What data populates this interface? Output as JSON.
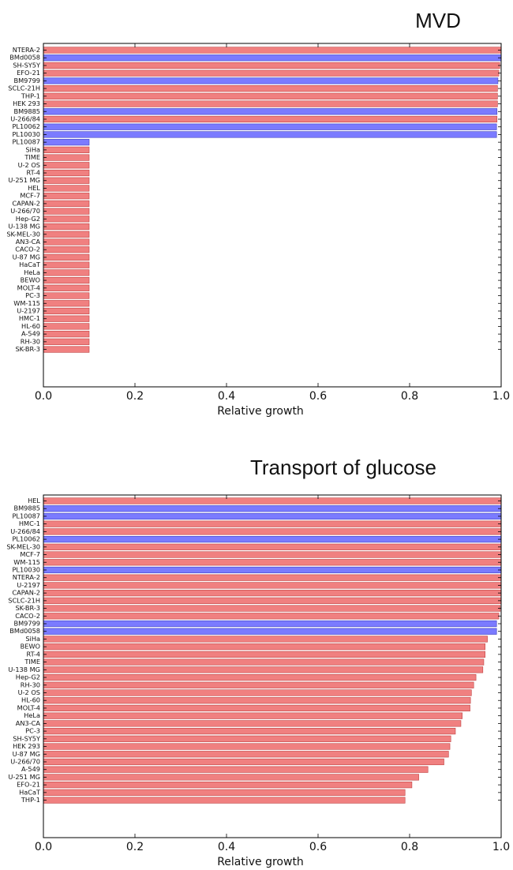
{
  "colors": {
    "red": "#f08080",
    "blue": "#7b7bff",
    "edge": "#c04040",
    "edge_blue": "#4040c0"
  },
  "chart_data": [
    {
      "type": "bar",
      "orientation": "horizontal",
      "title": "MVD",
      "xlabel": "Relative growth",
      "xlim": [
        0,
        1.0
      ],
      "xticks": [
        "0.0",
        "0.2",
        "0.4",
        "0.6",
        "0.8",
        "1.0"
      ],
      "categories": [
        "NTERA-2",
        "BMd0058",
        "SH-SY5Y",
        "EFO-21",
        "BM9799",
        "SCLC-21H",
        "THP-1",
        "HEK 293",
        "BM9885",
        "U-266/84",
        "PL10062",
        "PL10030",
        "PL10087",
        "SiHa",
        "TIME",
        "U-2 OS",
        "RT-4",
        "U-251 MG",
        "HEL",
        "MCF-7",
        "CAPAN-2",
        "U-266/70",
        "Hep-G2",
        "U-138 MG",
        "SK-MEL-30",
        "AN3-CA",
        "CACO-2",
        "U-87 MG",
        "HaCaT",
        "HeLa",
        "BEWO",
        "MOLT-4",
        "PC-3",
        "WM-115",
        "U-2197",
        "HMC-1",
        "HL-60",
        "A-549",
        "RH-30",
        "SK-BR-3"
      ],
      "values": [
        1.0,
        1.0,
        0.997,
        0.995,
        0.993,
        0.992,
        0.992,
        0.992,
        0.991,
        0.991,
        0.99,
        0.99,
        0.1,
        0.1,
        0.1,
        0.1,
        0.1,
        0.1,
        0.1,
        0.1,
        0.1,
        0.1,
        0.1,
        0.1,
        0.1,
        0.1,
        0.1,
        0.1,
        0.1,
        0.1,
        0.1,
        0.1,
        0.1,
        0.1,
        0.1,
        0.1,
        0.1,
        0.1,
        0.1,
        0.1
      ],
      "colors": [
        "red",
        "blue",
        "red",
        "red",
        "blue",
        "red",
        "red",
        "red",
        "blue",
        "red",
        "blue",
        "blue",
        "blue",
        "red",
        "red",
        "red",
        "red",
        "red",
        "red",
        "red",
        "red",
        "red",
        "red",
        "red",
        "red",
        "red",
        "red",
        "red",
        "red",
        "red",
        "red",
        "red",
        "red",
        "red",
        "red",
        "red",
        "red",
        "red",
        "red",
        "red"
      ]
    },
    {
      "type": "bar",
      "orientation": "horizontal",
      "title": "Transport of glucose",
      "xlabel": "Relative growth",
      "xlim": [
        0,
        1.0
      ],
      "xticks": [
        "0.0",
        "0.2",
        "0.4",
        "0.6",
        "0.8",
        "1.0"
      ],
      "categories": [
        "HEL",
        "BM9885",
        "PL10087",
        "HMC-1",
        "U-266/84",
        "PL10062",
        "SK-MEL-30",
        "MCF-7",
        "WM-115",
        "PL10030",
        "NTERA-2",
        "U-2197",
        "CAPAN-2",
        "SCLC-21H",
        "SK-BR-3",
        "CACO-2",
        "BM9799",
        "BMd0058",
        "SiHa",
        "BEWO",
        "RT-4",
        "TIME",
        "U-138 MG",
        "Hep-G2",
        "RH-30",
        "U-2 OS",
        "HL-60",
        "MOLT-4",
        "HeLa",
        "AN3-CA",
        "PC-3",
        "SH-SY5Y",
        "HEK 293",
        "U-87 MG",
        "U-266/70",
        "A-549",
        "U-251 MG",
        "EFO-21",
        "HaCaT",
        "THP-1"
      ],
      "values": [
        1.0,
        1.0,
        1.0,
        1.0,
        1.0,
        1.0,
        1.0,
        1.0,
        1.0,
        1.0,
        1.0,
        1.0,
        1.0,
        1.0,
        0.998,
        0.995,
        0.99,
        0.99,
        0.97,
        0.965,
        0.965,
        0.962,
        0.96,
        0.945,
        0.94,
        0.935,
        0.933,
        0.932,
        0.915,
        0.912,
        0.9,
        0.89,
        0.888,
        0.885,
        0.875,
        0.84,
        0.82,
        0.805,
        0.79,
        0.79
      ],
      "colors": [
        "red",
        "blue",
        "blue",
        "red",
        "red",
        "blue",
        "red",
        "red",
        "red",
        "blue",
        "red",
        "red",
        "red",
        "red",
        "red",
        "red",
        "blue",
        "blue",
        "red",
        "red",
        "red",
        "red",
        "red",
        "red",
        "red",
        "red",
        "red",
        "red",
        "red",
        "red",
        "red",
        "red",
        "red",
        "red",
        "red",
        "red",
        "red",
        "red",
        "red",
        "red"
      ]
    }
  ]
}
